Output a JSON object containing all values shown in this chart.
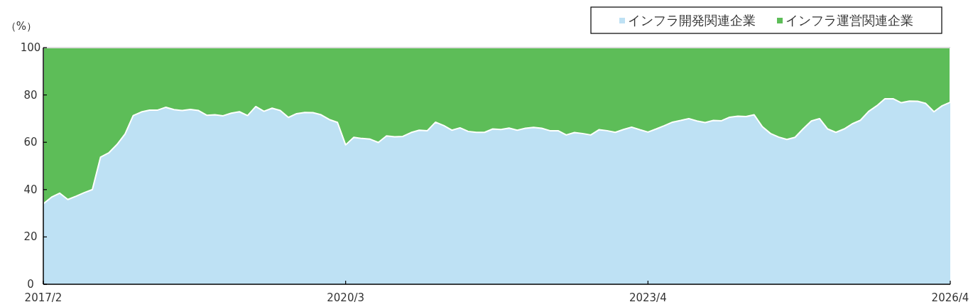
{
  "chart_data": {
    "type": "area",
    "stacked": true,
    "ylabel": "（%）",
    "ylim": [
      0,
      100
    ],
    "yticks": [
      0,
      20,
      40,
      60,
      80,
      100
    ],
    "legend": "top right",
    "grid": false,
    "categories": [
      "2017/2",
      null,
      null,
      null,
      null,
      null,
      null,
      null,
      null,
      null,
      null,
      null,
      null,
      null,
      null,
      null,
      null,
      null,
      null,
      null,
      null,
      null,
      null,
      null,
      null,
      null,
      null,
      null,
      null,
      null,
      null,
      null,
      null,
      null,
      null,
      null,
      null,
      "2020/3",
      null,
      null,
      null,
      null,
      null,
      null,
      null,
      null,
      null,
      null,
      null,
      null,
      null,
      null,
      null,
      null,
      null,
      null,
      null,
      null,
      null,
      null,
      null,
      null,
      null,
      null,
      null,
      null,
      null,
      null,
      null,
      null,
      null,
      null,
      null,
      null,
      "2023/4",
      null,
      null,
      null,
      null,
      null,
      null,
      null,
      null,
      null,
      null,
      null,
      null,
      null,
      null,
      null,
      null,
      null,
      null,
      null,
      null,
      null,
      null,
      null,
      null,
      null,
      null,
      null,
      null,
      null,
      null,
      null,
      null,
      null,
      null,
      null,
      null,
      "2026/4"
    ],
    "series": [
      {
        "name": "インフラ開発関連企業",
        "color": "#bee1f4",
        "values": [
          34.0,
          36.8,
          38.5,
          35.8,
          37.2,
          38.7,
          40.0,
          53.7,
          55.5,
          59.0,
          63.5,
          71.3,
          72.8,
          73.6,
          73.6,
          74.8,
          73.8,
          73.4,
          73.9,
          73.4,
          71.4,
          71.6,
          71.2,
          72.3,
          72.9,
          71.3,
          75.1,
          73.1,
          74.4,
          73.4,
          70.5,
          72.1,
          72.6,
          72.5,
          71.6,
          69.6,
          68.4,
          58.9,
          62.1,
          61.6,
          61.3,
          59.9,
          62.7,
          62.3,
          62.5,
          64.1,
          65.1,
          64.9,
          68.5,
          67.1,
          65.1,
          66.1,
          64.6,
          64.2,
          64.2,
          65.6,
          65.4,
          66.0,
          65.1,
          65.9,
          66.3,
          65.9,
          64.9,
          64.9,
          63.1,
          64.1,
          63.7,
          63.1,
          65.3,
          64.9,
          64.2,
          65.4,
          66.4,
          65.3,
          64.3,
          65.6,
          67.0,
          68.5,
          69.2,
          70.0,
          69.0,
          68.3,
          69.2,
          69.1,
          70.6,
          71.0,
          70.9,
          71.6,
          66.6,
          63.7,
          62.2,
          61.2,
          62.1,
          65.7,
          69.0,
          70.0,
          65.6,
          64.2,
          65.6,
          67.8,
          69.3,
          73.0,
          75.4,
          78.4,
          78.4,
          76.7,
          77.4,
          77.3,
          76.4,
          72.9,
          75.4,
          76.9
        ]
      },
      {
        "name": "インフラ運営関連企業",
        "color": "#5dbd58",
        "values": [
          66.0,
          63.2,
          61.5,
          64.2,
          62.8,
          61.3,
          60.0,
          46.3,
          44.5,
          41.0,
          36.5,
          28.7,
          27.2,
          26.4,
          26.4,
          25.2,
          26.2,
          26.6,
          26.1,
          26.6,
          28.6,
          28.4,
          28.8,
          27.7,
          27.1,
          28.7,
          24.9,
          26.9,
          25.6,
          26.6,
          29.5,
          27.9,
          27.4,
          27.5,
          28.4,
          30.4,
          31.6,
          41.1,
          37.9,
          38.4,
          38.7,
          40.1,
          37.3,
          37.7,
          37.5,
          35.9,
          34.9,
          35.1,
          31.5,
          32.9,
          34.9,
          33.9,
          35.4,
          35.8,
          35.8,
          34.4,
          34.6,
          34.0,
          34.9,
          34.1,
          33.7,
          34.1,
          35.1,
          35.1,
          36.9,
          35.9,
          36.3,
          36.9,
          34.7,
          35.1,
          35.8,
          34.6,
          33.6,
          34.7,
          35.7,
          34.4,
          33.0,
          31.5,
          30.8,
          30.0,
          31.0,
          31.7,
          30.8,
          30.9,
          29.4,
          29.0,
          29.1,
          28.4,
          33.4,
          36.3,
          37.8,
          38.8,
          37.9,
          34.3,
          31.0,
          30.0,
          34.4,
          35.8,
          34.4,
          32.2,
          30.7,
          27.0,
          24.6,
          21.6,
          21.6,
          23.3,
          22.6,
          22.7,
          23.6,
          27.1,
          24.6,
          23.1
        ]
      }
    ]
  }
}
